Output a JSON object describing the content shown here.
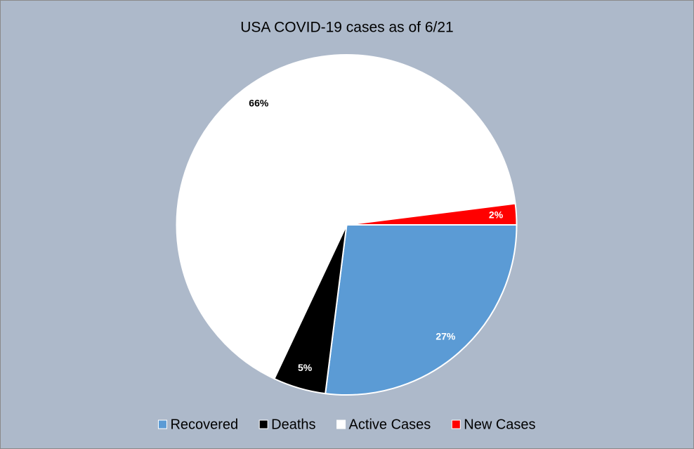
{
  "chart_data": {
    "type": "pie",
    "title": "USA COVID-19 cases as of 6/21",
    "categories": [
      "Recovered",
      "Deaths",
      "Active Cases",
      "New Cases"
    ],
    "values": [
      27,
      5,
      66,
      2
    ],
    "value_labels": [
      "27%",
      "5%",
      "66%",
      "2%"
    ],
    "colors": [
      "#5b9bd5",
      "#000000",
      "#ffffff",
      "#ff0000"
    ],
    "label_colors": [
      "#ffffff",
      "#ffffff",
      "#000000",
      "#ffffff"
    ],
    "legend": "bottom"
  }
}
